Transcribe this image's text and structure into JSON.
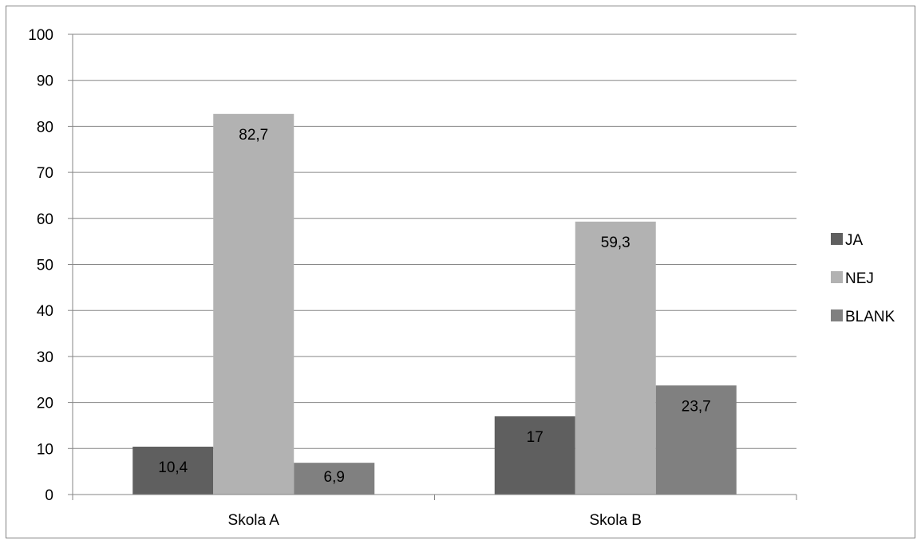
{
  "chart_data": {
    "type": "bar",
    "categories": [
      "Skola A",
      "Skola B"
    ],
    "series": [
      {
        "name": "JA",
        "values": [
          10.4,
          17
        ],
        "labels": [
          "10,4",
          "17"
        ],
        "color": "#5f5f5f"
      },
      {
        "name": "NEJ",
        "values": [
          82.7,
          59.3
        ],
        "labels": [
          "82,7",
          "59,3"
        ],
        "color": "#b2b2b2"
      },
      {
        "name": "BLANK",
        "values": [
          6.9,
          23.7
        ],
        "labels": [
          "6,9",
          "23,7"
        ],
        "color": "#808080"
      }
    ],
    "ylim": [
      0,
      100
    ],
    "yticks": [
      "0",
      "10",
      "20",
      "30",
      "40",
      "50",
      "60",
      "70",
      "80",
      "90",
      "100"
    ],
    "grid": true,
    "legend": "right"
  }
}
